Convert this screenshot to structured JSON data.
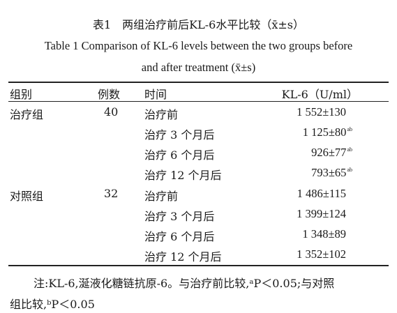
{
  "title": {
    "cn": "表1　两组治疗前后KL-6水平比较（x̄±s）",
    "en_line1": "Table 1  Comparison of KL-6 levels between the two groups before",
    "en_line2": "and after treatment (x̄±s)"
  },
  "table": {
    "headers": [
      "组别",
      "例数",
      "时间",
      "KL-6（U/ml）"
    ],
    "rows": [
      {
        "group": "治疗组",
        "n": "40",
        "time": "治疗前",
        "value": "1 552±130",
        "mark": ""
      },
      {
        "group": "",
        "n": "",
        "time": "治疗 3 个月后",
        "value": "1 125±80",
        "mark": "ab"
      },
      {
        "group": "",
        "n": "",
        "time": "治疗 6 个月后",
        "value": "926±77",
        "mark": "ab"
      },
      {
        "group": "",
        "n": "",
        "time": "治疗 12 个月后",
        "value": "793±65",
        "mark": "ab"
      },
      {
        "group": "对照组",
        "n": "32",
        "time": "治疗前",
        "value": "1 486±115",
        "mark": ""
      },
      {
        "group": "",
        "n": "",
        "time": "治疗 3 个月后",
        "value": "1 399±124",
        "mark": ""
      },
      {
        "group": "",
        "n": "",
        "time": "治疗 6 个月后",
        "value": "1 348±89",
        "mark": ""
      },
      {
        "group": "",
        "n": "",
        "time": "治疗 12 个月后",
        "value": "1 352±102",
        "mark": ""
      }
    ]
  },
  "note": {
    "line1": "注:KL-6,涎液化糖链抗原-6。与治疗前比较,ᵃP＜0.05;与对照",
    "line2": "组比较,ᵇP＜0.05"
  }
}
